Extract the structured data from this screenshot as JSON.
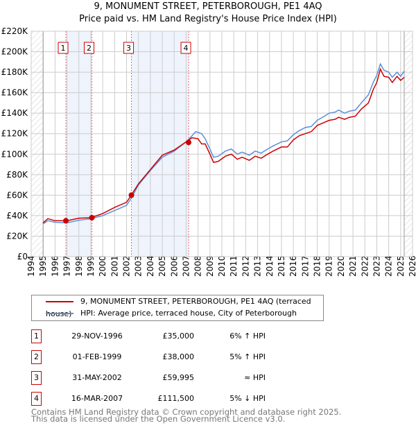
{
  "chart_data": {
    "type": "line",
    "title": "9, MONUMENT STREET, PETERBOROUGH, PE1 4AQ",
    "subtitle": "Price paid vs. HM Land Registry's House Price Index (HPI)",
    "xlim": [
      1994,
      2026
    ],
    "ylim": [
      0,
      220000
    ],
    "x_ticks": [
      "1994",
      "1995",
      "1996",
      "1997",
      "1998",
      "1999",
      "2000",
      "2001",
      "2002",
      "2003",
      "2004",
      "2005",
      "2006",
      "2007",
      "2008",
      "2009",
      "2010",
      "2011",
      "2012",
      "2013",
      "2014",
      "2015",
      "2016",
      "2017",
      "2018",
      "2019",
      "2020",
      "2021",
      "2022",
      "2023",
      "2024",
      "2025",
      "2026"
    ],
    "y_ticks": [
      {
        "v": 0,
        "l": "£0"
      },
      {
        "v": 20000,
        "l": "£20K"
      },
      {
        "v": 40000,
        "l": "£40K"
      },
      {
        "v": 60000,
        "l": "£60K"
      },
      {
        "v": 80000,
        "l": "£80K"
      },
      {
        "v": 100000,
        "l": "£100K"
      },
      {
        "v": 120000,
        "l": "£120K"
      },
      {
        "v": 140000,
        "l": "£140K"
      },
      {
        "v": 160000,
        "l": "£160K"
      },
      {
        "v": 180000,
        "l": "£180K"
      },
      {
        "v": 200000,
        "l": "£200K"
      },
      {
        "v": 220000,
        "l": "£220K"
      }
    ],
    "grid": true,
    "hatched_ranges": [
      [
        1994,
        1995
      ],
      [
        2025.3,
        2026
      ]
    ],
    "shaded_ranges": [
      [
        1996.91,
        1999.09
      ],
      [
        2002.41,
        2007.21
      ]
    ],
    "series": [
      {
        "name": "9, MONUMENT STREET, PETERBOROUGH, PE1 4AQ (terraced house)",
        "color": "#cc0000",
        "x": [
          1995,
          1995.4,
          1996,
          1997,
          1998,
          1999,
          2000,
          2001,
          2002,
          2002.4,
          2003,
          2004,
          2005,
          2006,
          2007,
          2007.5,
          2008,
          2008.3,
          2008.6,
          2009,
          2009.3,
          2009.7,
          2010.3,
          2010.8,
          2011.3,
          2011.7,
          2012.3,
          2012.8,
          2013.3,
          2013.7,
          2014.3,
          2015,
          2015.5,
          2016,
          2016.5,
          2017,
          2017.5,
          2018,
          2018.6,
          2019,
          2019.5,
          2019.8,
          2020.3,
          2020.7,
          2021.2,
          2021.7,
          2022.3,
          2022.7,
          2023,
          2023.3,
          2023.6,
          2024,
          2024.3,
          2024.7,
          2025,
          2025.3
        ],
        "y": [
          33000,
          37000,
          35000,
          35000,
          37500,
          38000,
          42000,
          48000,
          53000,
          60000,
          71000,
          85000,
          99000,
          104000,
          112000,
          116000,
          115000,
          110000,
          110000,
          100000,
          92000,
          93000,
          98000,
          100000,
          95000,
          97000,
          94000,
          98000,
          96000,
          99000,
          103000,
          107000,
          107000,
          114000,
          118000,
          120000,
          122000,
          128000,
          131000,
          133000,
          134000,
          136000,
          134000,
          136000,
          137000,
          144000,
          150000,
          163000,
          170000,
          183000,
          176000,
          175000,
          170000,
          176000,
          172000,
          175000
        ]
      },
      {
        "name": "HPI: Average price, terraced house, City of Peterborough",
        "color": "#5b8fd6",
        "x": [
          1995,
          1995.4,
          1996,
          1997,
          1998,
          1999,
          2000,
          2001,
          2002,
          2002.4,
          2003,
          2004,
          2005,
          2006,
          2007,
          2007.5,
          2007.8,
          2008.3,
          2008.6,
          2009,
          2009.3,
          2009.7,
          2010.3,
          2010.8,
          2011.3,
          2011.7,
          2012.3,
          2012.8,
          2013.3,
          2013.7,
          2014.3,
          2015,
          2015.5,
          2016,
          2016.5,
          2017,
          2017.5,
          2018,
          2018.6,
          2019,
          2019.5,
          2019.8,
          2020.3,
          2020.7,
          2021.2,
          2021.7,
          2022.3,
          2022.7,
          2023,
          2023.3,
          2023.6,
          2024,
          2024.3,
          2024.7,
          2025,
          2025.3
        ],
        "y": [
          32000,
          35000,
          33500,
          33000,
          35500,
          37000,
          40000,
          45000,
          50000,
          57000,
          70000,
          84000,
          97000,
          103000,
          112000,
          118000,
          122000,
          120000,
          115000,
          105000,
          97000,
          98000,
          103000,
          105000,
          100000,
          102000,
          99000,
          103000,
          101000,
          104000,
          108000,
          112000,
          113000,
          119000,
          123000,
          126000,
          127000,
          133000,
          137000,
          140000,
          141000,
          143000,
          140000,
          142000,
          143000,
          150000,
          158000,
          170000,
          177000,
          188000,
          182000,
          180000,
          175000,
          180000,
          176000,
          181000
        ]
      }
    ],
    "sales": [
      {
        "n": "1",
        "x": 1996.91,
        "y": 35000
      },
      {
        "n": "2",
        "x": 1999.09,
        "y": 38000
      },
      {
        "n": "3",
        "x": 2002.41,
        "y": 59995
      },
      {
        "n": "4",
        "x": 2007.21,
        "y": 111500
      }
    ]
  },
  "title": "9, MONUMENT STREET, PETERBOROUGH, PE1 4AQ",
  "subtitle": "Price paid vs. HM Land Registry's House Price Index (HPI)",
  "legend": [
    "9, MONUMENT STREET, PETERBOROUGH, PE1 4AQ (terraced house)",
    "HPI: Average price, terraced house, City of Peterborough"
  ],
  "table": [
    {
      "n": "1",
      "date": "29-NOV-1996",
      "price": "£35,000",
      "hpi": "6% ↑ HPI"
    },
    {
      "n": "2",
      "date": "01-FEB-1999",
      "price": "£38,000",
      "hpi": "5% ↑ HPI"
    },
    {
      "n": "3",
      "date": "31-MAY-2002",
      "price": "£59,995",
      "hpi": "≈ HPI"
    },
    {
      "n": "4",
      "date": "16-MAR-2007",
      "price": "£111,500",
      "hpi": "5% ↓ HPI"
    }
  ],
  "footer": [
    "Contains HM Land Registry data © Crown copyright and database right 2025.",
    "This data is licensed under the Open Government Licence v3.0."
  ]
}
